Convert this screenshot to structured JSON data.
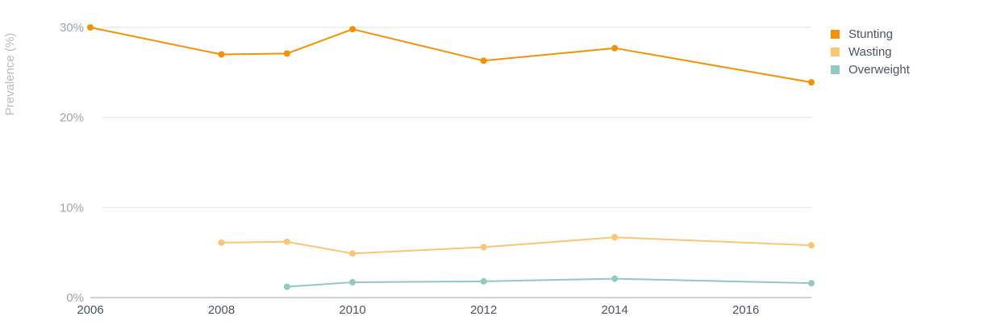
{
  "chart_data": {
    "type": "line",
    "title": "",
    "xlabel": "",
    "ylabel": "Prevalence (%)",
    "xlim": [
      2006,
      2017
    ],
    "ylim": [
      0,
      30
    ],
    "x_ticks": [
      2006,
      2008,
      2010,
      2012,
      2014,
      2016
    ],
    "x_tick_labels": [
      "2006",
      "2008",
      "2010",
      "2012",
      "2014",
      "2016"
    ],
    "y_ticks": [
      0,
      10,
      20,
      30
    ],
    "y_tick_labels": [
      "0%",
      "10%",
      "20%",
      "30%"
    ],
    "grid": true,
    "legend_position": "top-right",
    "series": [
      {
        "name": "Stunting",
        "color": "#F39200",
        "points": [
          [
            2006,
            30.0
          ],
          [
            2008,
            27.0
          ],
          [
            2009,
            27.1
          ],
          [
            2010,
            29.8
          ],
          [
            2012,
            26.3
          ],
          [
            2014,
            27.7
          ],
          [
            2017,
            23.9
          ]
        ]
      },
      {
        "name": "Wasting",
        "color": "#FBC672",
        "points": [
          [
            2008,
            6.1
          ],
          [
            2009,
            6.2
          ],
          [
            2010,
            4.9
          ],
          [
            2012,
            5.6
          ],
          [
            2014,
            6.7
          ],
          [
            2017,
            5.8
          ]
        ]
      },
      {
        "name": "Overweight",
        "color": "#8FCAC4",
        "points": [
          [
            2009,
            1.2
          ],
          [
            2010,
            1.7
          ],
          [
            2012,
            1.8
          ],
          [
            2014,
            2.1
          ],
          [
            2017,
            1.6
          ]
        ]
      }
    ]
  }
}
